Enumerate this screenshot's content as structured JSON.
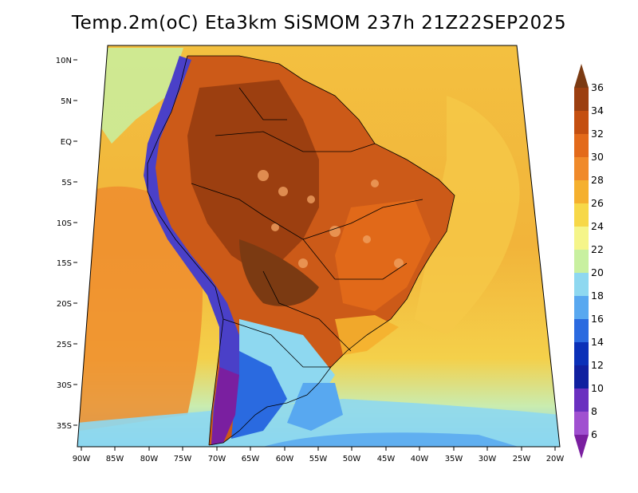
{
  "title": "Temp.2m(oC) Eta3km SiSMOM 237h 21Z22SEP2025",
  "map": {
    "lat_labels": [
      "10N",
      "5N",
      "EQ",
      "5S",
      "10S",
      "15S",
      "20S",
      "25S",
      "30S",
      "35S"
    ],
    "lon_labels": [
      "90W",
      "85W",
      "80W",
      "75W",
      "70W",
      "65W",
      "60W",
      "55W",
      "50W",
      "45W",
      "40W",
      "35W",
      "30W",
      "25W",
      "20W"
    ]
  },
  "colorbar": {
    "labels": [
      "36",
      "34",
      "32",
      "30",
      "28",
      "26",
      "24",
      "22",
      "20",
      "18",
      "16",
      "14",
      "12",
      "10",
      "8",
      "6"
    ],
    "colors": [
      "#7b3a12",
      "#9c3f10",
      "#c44f10",
      "#e36a1a",
      "#f08a2a",
      "#f5b02e",
      "#f7d848",
      "#f5f58a",
      "#c8f0a0",
      "#8ed8f0",
      "#58a8f0",
      "#2a6ae0",
      "#0a30b8",
      "#1020a0",
      "#6a30c0",
      "#a050d0",
      "#7a1fa0"
    ]
  },
  "palette": {
    "ocean_warm": "#f0a640",
    "ocean_mid": "#f3c343",
    "ocean_cool": "#f2e25a",
    "land_hot": "#8a3a12",
    "land_warm": "#cc5a18",
    "andes": "#4a40c8"
  }
}
